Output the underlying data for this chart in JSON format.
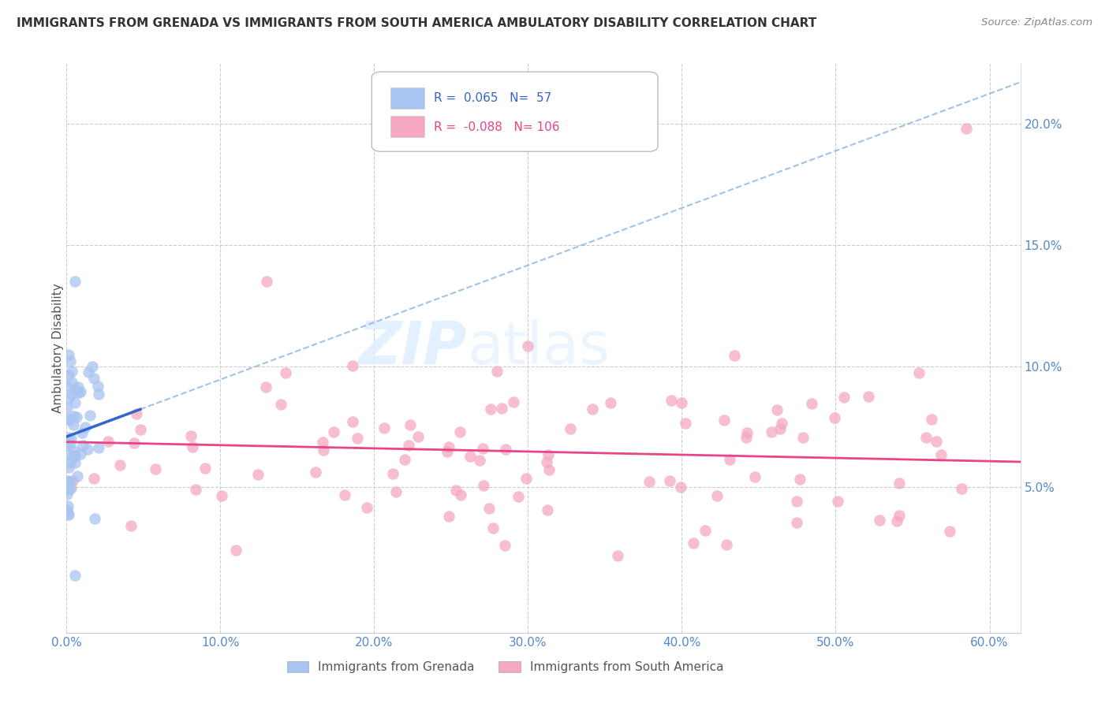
{
  "title": "IMMIGRANTS FROM GRENADA VS IMMIGRANTS FROM SOUTH AMERICA AMBULATORY DISABILITY CORRELATION CHART",
  "source": "Source: ZipAtlas.com",
  "ylabel": "Ambulatory Disability",
  "grenada_R": 0.065,
  "grenada_N": 57,
  "sa_R": -0.088,
  "sa_N": 106,
  "grenada_color": "#A8C4F0",
  "sa_color": "#F5A8C0",
  "grenada_line_color": "#3366CC",
  "grenada_dash_color": "#7AAADE",
  "sa_line_color": "#E84488",
  "text_blue": "#3366CC",
  "text_pink": "#E84488",
  "tick_color": "#5588CC",
  "xlim": [
    0.0,
    0.62
  ],
  "ylim": [
    -0.01,
    0.225
  ],
  "xticks": [
    0.0,
    0.1,
    0.2,
    0.3,
    0.4,
    0.5,
    0.6
  ],
  "yticks_right": [
    0.05,
    0.1,
    0.15,
    0.2
  ],
  "watermark_zip": "ZIP",
  "watermark_atlas": "atlas",
  "legend_grenada": "Immigrants from Grenada",
  "legend_sa": "Immigrants from South America"
}
